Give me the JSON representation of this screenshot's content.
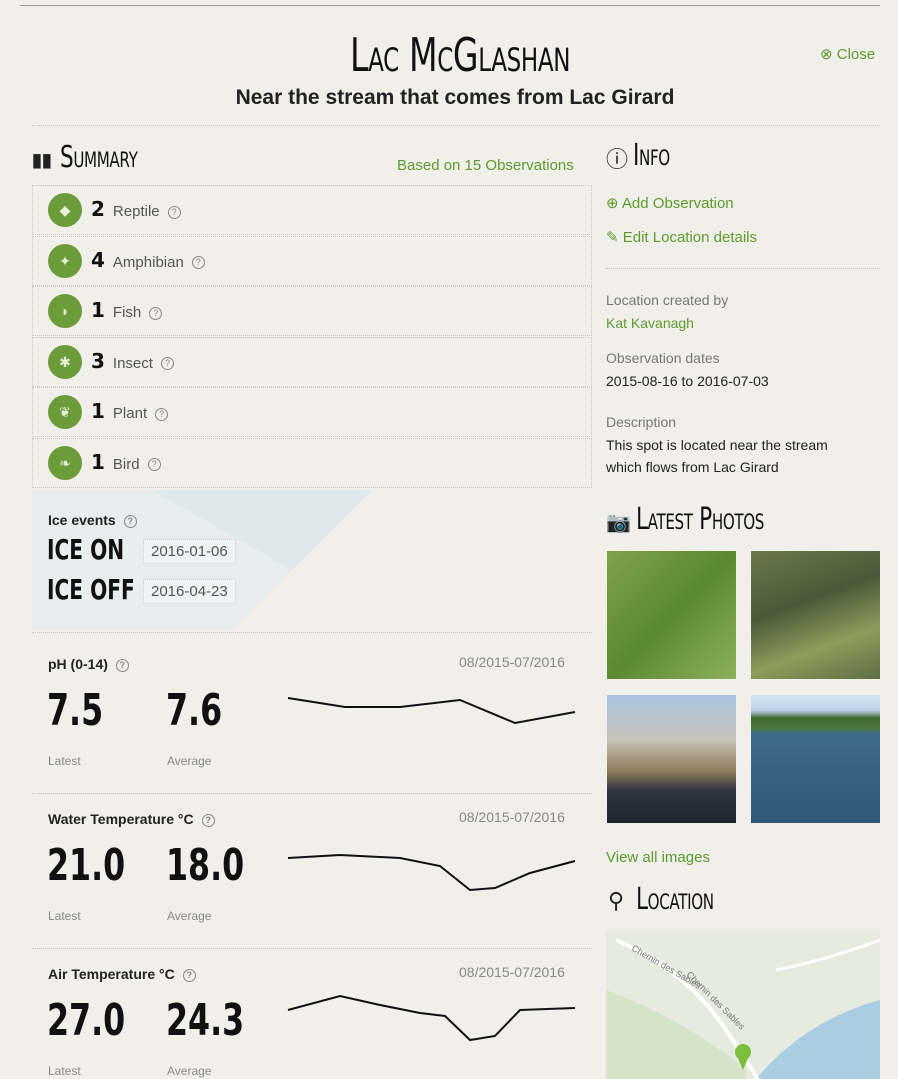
{
  "header": {
    "title": "Lac McGlashan",
    "subtitle": "Near the stream that comes from Lac Girard",
    "close": "Close"
  },
  "summary": {
    "title": "Summary",
    "observations": "Based on 15 Observations",
    "items": [
      {
        "count": 2,
        "label": "Reptile"
      },
      {
        "count": 4,
        "label": "Amphibian"
      },
      {
        "count": 1,
        "label": "Fish"
      },
      {
        "count": 3,
        "label": "Insect"
      },
      {
        "count": 1,
        "label": "Plant"
      },
      {
        "count": 1,
        "label": "Bird"
      }
    ]
  },
  "ice": {
    "title": "Ice events",
    "events": [
      {
        "label": "ICE ON",
        "date": "2016-01-06"
      },
      {
        "label": "ICE OFF",
        "date": "2016-04-23"
      }
    ]
  },
  "measurements": [
    {
      "title": "pH (0-14)",
      "range": "08/2015-07/2016",
      "latest": "7.5",
      "latest_label": "Latest",
      "average": "7.6",
      "average_label": "Average"
    },
    {
      "title": "Water Temperature °C",
      "range": "08/2015-07/2016",
      "latest": "21.0",
      "latest_label": "Latest",
      "average": "18.0",
      "average_label": "Average"
    },
    {
      "title": "Air Temperature °C",
      "range": "08/2015-07/2016",
      "latest": "27.0",
      "latest_label": "Latest",
      "average": "24.3",
      "average_label": "Average"
    }
  ],
  "info": {
    "title": "Info",
    "add": "Add Observation",
    "edit": "Edit Location details",
    "created_label": "Location created by",
    "created_by": "Kat Kavanagh",
    "dates_label": "Observation dates",
    "dates": "2015-08-16 to 2016-07-03",
    "description_label": "Description",
    "description": [
      "This spot is located near the stream",
      "which flows from Lac Girard"
    ]
  },
  "photos": {
    "title": "Latest Photos",
    "view_all": "View all images"
  },
  "location": {
    "title": "Location",
    "map_labels": [
      "Chemin des Sables",
      "Chemin des Sables"
    ]
  }
}
